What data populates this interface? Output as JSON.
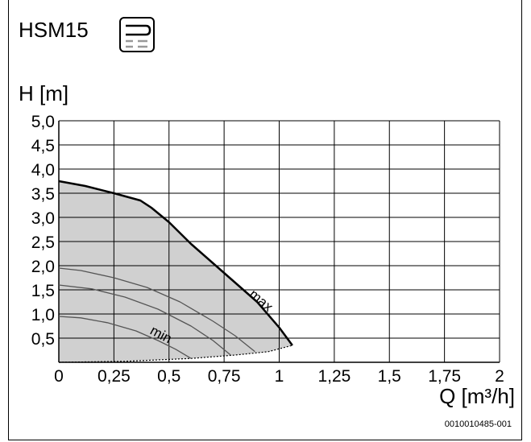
{
  "header": {
    "title": "HSM15",
    "symbol_icon": "hydraulic-module-icon"
  },
  "chart_data": {
    "type": "area",
    "title": "HSM15",
    "ylabel": "H [m]",
    "xlabel": "Q [m³/h]",
    "xlim": [
      0,
      2
    ],
    "ylim": [
      0,
      5
    ],
    "x_ticks": [
      {
        "value": 0,
        "label": "0"
      },
      {
        "value": 0.25,
        "label": "0,25"
      },
      {
        "value": 0.5,
        "label": "0,5"
      },
      {
        "value": 0.75,
        "label": "0,75"
      },
      {
        "value": 1,
        "label": "1"
      },
      {
        "value": 1.25,
        "label": "1,25"
      },
      {
        "value": 1.5,
        "label": "1,5"
      },
      {
        "value": 1.75,
        "label": "1,75"
      },
      {
        "value": 2,
        "label": "2"
      }
    ],
    "y_ticks": [
      {
        "value": 0.5,
        "label": "0,5"
      },
      {
        "value": 1.0,
        "label": "1,0"
      },
      {
        "value": 1.5,
        "label": "1,5"
      },
      {
        "value": 2.0,
        "label": "2,0"
      },
      {
        "value": 2.5,
        "label": "2,5"
      },
      {
        "value": 3.0,
        "label": "3,0"
      },
      {
        "value": 3.5,
        "label": "3,5"
      },
      {
        "value": 4.0,
        "label": "4,0"
      },
      {
        "value": 4.5,
        "label": "4,5"
      },
      {
        "value": 5.0,
        "label": "5,0"
      }
    ],
    "grid": true,
    "colors": {
      "area": "#d0d0d0",
      "max_line": "#000000",
      "mid_lines": "#555555",
      "grid": "#000000"
    },
    "series": [
      {
        "name": "max",
        "points": [
          [
            0,
            3.75
          ],
          [
            0.12,
            3.65
          ],
          [
            0.25,
            3.5
          ],
          [
            0.37,
            3.35
          ],
          [
            0.42,
            3.2
          ],
          [
            0.5,
            2.9
          ],
          [
            0.6,
            2.45
          ],
          [
            0.75,
            1.85
          ],
          [
            0.9,
            1.25
          ],
          [
            1.0,
            0.72
          ],
          [
            1.06,
            0.35
          ]
        ]
      },
      {
        "name": "",
        "points": [
          [
            0,
            1.95
          ],
          [
            0.1,
            1.9
          ],
          [
            0.25,
            1.75
          ],
          [
            0.4,
            1.55
          ],
          [
            0.55,
            1.25
          ],
          [
            0.7,
            0.85
          ],
          [
            0.8,
            0.55
          ],
          [
            0.89,
            0.22
          ]
        ]
      },
      {
        "name": "",
        "points": [
          [
            0,
            1.6
          ],
          [
            0.15,
            1.52
          ],
          [
            0.3,
            1.35
          ],
          [
            0.45,
            1.1
          ],
          [
            0.6,
            0.75
          ],
          [
            0.7,
            0.45
          ],
          [
            0.78,
            0.15
          ]
        ]
      },
      {
        "name": "min",
        "points": [
          [
            0,
            0.95
          ],
          [
            0.1,
            0.92
          ],
          [
            0.22,
            0.82
          ],
          [
            0.35,
            0.65
          ],
          [
            0.45,
            0.45
          ],
          [
            0.53,
            0.27
          ],
          [
            0.6,
            0.08
          ]
        ]
      }
    ],
    "lower_boundary": [
      [
        0,
        0
      ],
      [
        0.3,
        0.02
      ],
      [
        0.6,
        0.08
      ],
      [
        0.8,
        0.15
      ],
      [
        0.95,
        0.22
      ],
      [
        1.06,
        0.35
      ]
    ],
    "labels": {
      "max": "max",
      "min": "min"
    }
  },
  "footer": {
    "code": "0010010485-001"
  }
}
